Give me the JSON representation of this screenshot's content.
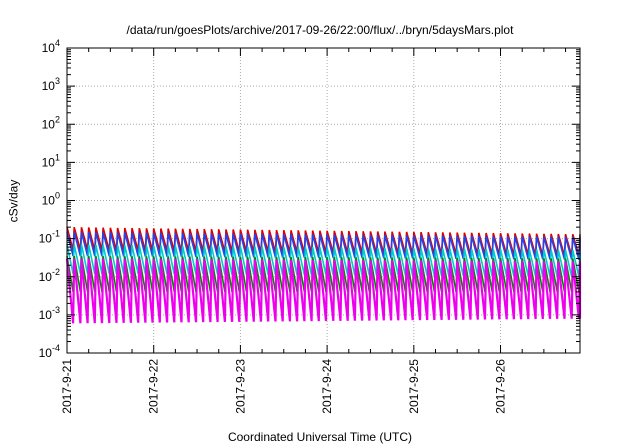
{
  "chart_data": {
    "type": "line",
    "title": "/data/run/goesPlots/archive/2017-09-26/22:00/flux/../bryn/5daysMars.plot",
    "xlabel": "Coordinated Universal Time (UTC)",
    "ylabel": "cSv/day",
    "y_scale": "log",
    "ylim": [
      0.0001,
      10000
    ],
    "xlim": [
      "2017-09-21",
      "2017-09-26 22:00"
    ],
    "x_ticks": [
      "2017-9-21",
      "2017-9-22",
      "2017-9-23",
      "2017-9-24",
      "2017-9-25",
      "2017-9-26"
    ],
    "y_ticks": [
      {
        "base": "10",
        "exp": "-4"
      },
      {
        "base": "10",
        "exp": "-3"
      },
      {
        "base": "10",
        "exp": "-2"
      },
      {
        "base": "10",
        "exp": "-1"
      },
      {
        "base": "10",
        "exp": "0"
      },
      {
        "base": "10",
        "exp": "1"
      },
      {
        "base": "10",
        "exp": "2"
      },
      {
        "base": "10",
        "exp": "3"
      },
      {
        "base": "10",
        "exp": "4"
      }
    ],
    "grid": true,
    "sawtooth_cycles_per_day": 12,
    "series": [
      {
        "color": "#dd0000",
        "values_early": [
          0.2,
          0.05
        ],
        "values_late": [
          0.13,
          0.035
        ]
      },
      {
        "color": "#2244ee",
        "values_early": [
          0.15,
          0.035
        ],
        "values_late": [
          0.11,
          0.028
        ]
      },
      {
        "color": "#00cccc",
        "values_early": [
          0.07,
          0.012
        ],
        "values_late": [
          0.05,
          0.01
        ]
      },
      {
        "color": "#008800",
        "values_early": [
          0.035,
          0.004
        ],
        "values_late": [
          0.03,
          0.004
        ]
      },
      {
        "color": "#ee00ee",
        "values_early": [
          0.03,
          0.0006
        ],
        "values_late": [
          0.025,
          0.0008
        ]
      }
    ]
  }
}
